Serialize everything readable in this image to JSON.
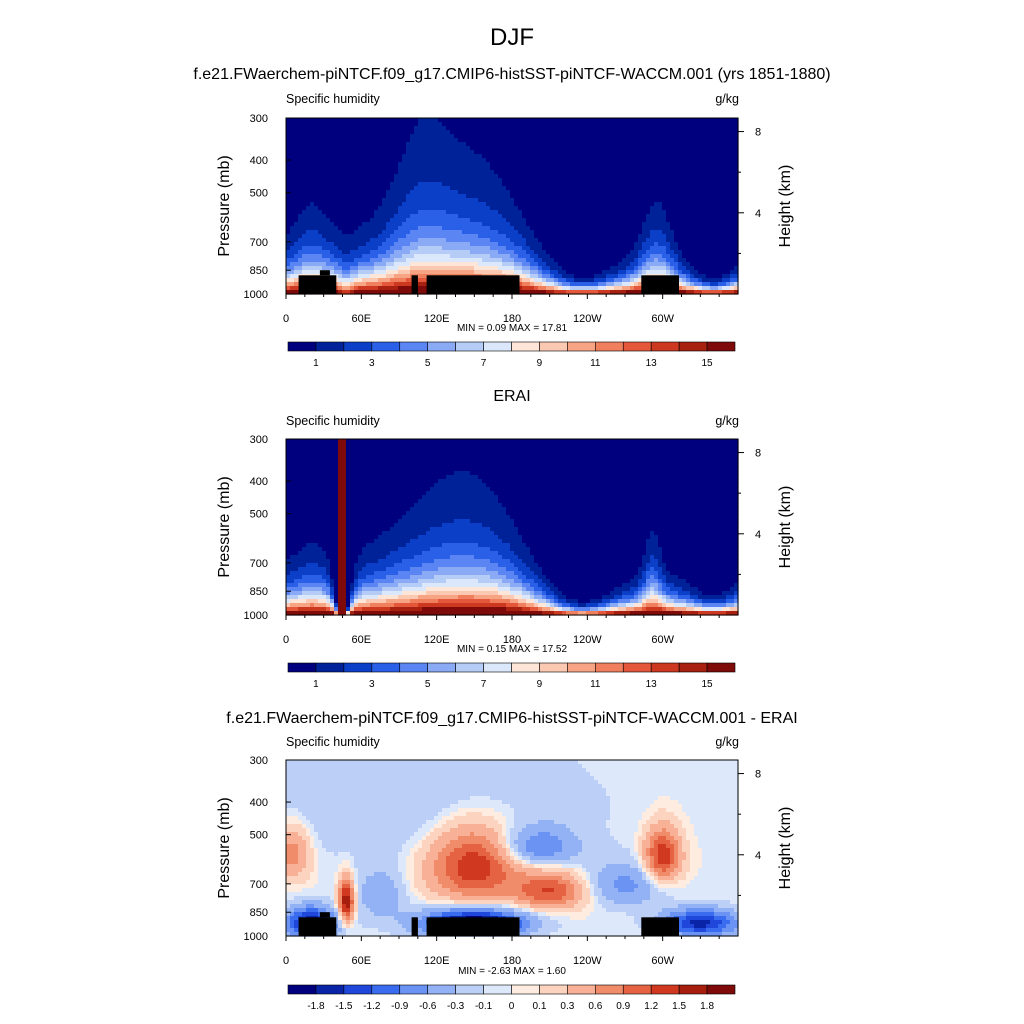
{
  "figure": {
    "season_title": "DJF"
  },
  "colors": {
    "abs_levels": [
      "#00007f",
      "#002299",
      "#0b3fc8",
      "#2a5fe8",
      "#5b85f2",
      "#8aaaf5",
      "#b5ccf7",
      "#dbe8fb",
      "#fde6d8",
      "#fbc8b2",
      "#f7a485",
      "#f07f5e",
      "#e4573a",
      "#cc3820",
      "#a8200f",
      "#7e0a0a"
    ],
    "diff_levels": [
      "#00007f",
      "#0a24a8",
      "#1f48db",
      "#3a6cf0",
      "#6a93f4",
      "#93b2f5",
      "#bcd0f7",
      "#dde9fb",
      "#fdecdf",
      "#fcd3bf",
      "#f8b196",
      "#f08c6a",
      "#e56342",
      "#d0391f",
      "#a81e0e",
      "#7e0a0a"
    ],
    "land_mask": "#000000"
  },
  "chart_data": [
    {
      "type": "heatmap",
      "title": "f.e21.FWaerchem-piNTCF.f09_g17.CMIP6-histSST-piNTCF-WACCM.001 (yrs 1851-1880)",
      "left_string": "Specific humidity",
      "right_string": "g/kg",
      "ylabel": "Pressure (mb)",
      "ylabel_right": "Height (km)",
      "x_ticks": [
        "0",
        "60E",
        "120E",
        "180",
        "120W",
        "60W"
      ],
      "x_tick_values": [
        0,
        60,
        120,
        180,
        240,
        300
      ],
      "xlim": [
        0,
        360
      ],
      "y_ticks": [
        "300",
        "400",
        "500",
        "700",
        "850",
        "1000"
      ],
      "y_tick_values": [
        300,
        400,
        500,
        700,
        850,
        1000
      ],
      "ylim": [
        1000,
        300
      ],
      "log_y": true,
      "height_ticks": [
        "8",
        "4"
      ],
      "height_tick_values": [
        8,
        4
      ],
      "stats": "MIN =   0.09  MAX =  17.81",
      "colorbar_labels": [
        "1",
        "3",
        "5",
        "7",
        "9",
        "11",
        "13",
        "15"
      ],
      "levels": [
        1,
        2,
        3,
        4,
        5,
        6,
        7,
        8,
        9,
        10,
        11,
        12,
        13,
        14,
        15
      ],
      "land": [
        [
          10,
          40,
          1000,
          880
        ],
        [
          27,
          35,
          880,
          850
        ],
        [
          100,
          105,
          1000,
          880
        ],
        [
          112,
          186,
          1000,
          880
        ],
        [
          283,
          313,
          1000,
          880
        ]
      ],
      "base_field": "model"
    },
    {
      "type": "heatmap",
      "title": "ERAI",
      "left_string": "Specific humidity",
      "right_string": "g/kg",
      "ylabel": "Pressure (mb)",
      "ylabel_right": "Height (km)",
      "x_ticks": [
        "0",
        "60E",
        "120E",
        "180",
        "120W",
        "60W"
      ],
      "x_tick_values": [
        0,
        60,
        120,
        180,
        240,
        300
      ],
      "xlim": [
        0,
        360
      ],
      "y_ticks": [
        "300",
        "400",
        "500",
        "700",
        "850",
        "1000"
      ],
      "y_tick_values": [
        300,
        400,
        500,
        700,
        850,
        1000
      ],
      "ylim": [
        1000,
        300
      ],
      "log_y": true,
      "height_ticks": [
        "8",
        "4"
      ],
      "height_tick_values": [
        8,
        4
      ],
      "stats": "MIN =   0.15  MAX =  17.52",
      "colorbar_labels": [
        "1",
        "3",
        "5",
        "7",
        "9",
        "11",
        "13",
        "15"
      ],
      "levels": [
        1,
        2,
        3,
        4,
        5,
        6,
        7,
        8,
        9,
        10,
        11,
        12,
        13,
        14,
        15
      ],
      "land": [],
      "base_field": "obs"
    },
    {
      "type": "heatmap",
      "title": "f.e21.FWaerchem-piNTCF.f09_g17.CMIP6-histSST-piNTCF-WACCM.001 - ERAI",
      "left_string": "Specific humidity",
      "right_string": "g/kg",
      "ylabel": "Pressure (mb)",
      "ylabel_right": "Height (km)",
      "x_ticks": [
        "0",
        "60E",
        "120E",
        "180",
        "120W",
        "60W"
      ],
      "x_tick_values": [
        0,
        60,
        120,
        180,
        240,
        300
      ],
      "xlim": [
        0,
        360
      ],
      "y_ticks": [
        "300",
        "400",
        "500",
        "700",
        "850",
        "1000"
      ],
      "y_tick_values": [
        300,
        400,
        500,
        700,
        850,
        1000
      ],
      "ylim": [
        1000,
        300
      ],
      "log_y": true,
      "height_ticks": [
        "8",
        "4"
      ],
      "height_tick_values": [
        8,
        4
      ],
      "stats": "MIN =  -2.63  MAX =   1.60",
      "colorbar_labels": [
        "-1.8",
        "-1.5",
        "-1.2",
        "-0.9",
        "-0.6",
        "-0.3",
        "-0.1",
        "0",
        "0.1",
        "0.3",
        "0.6",
        "0.9",
        "1.2",
        "1.5",
        "1.8"
      ],
      "levels": [
        -1.8,
        -1.5,
        -1.2,
        -0.9,
        -0.6,
        -0.3,
        -0.1,
        0,
        0.1,
        0.3,
        0.6,
        0.9,
        1.2,
        1.5,
        1.8
      ],
      "land": [
        [
          10,
          40,
          1000,
          880
        ],
        [
          27,
          35,
          880,
          850
        ],
        [
          100,
          105,
          1000,
          880
        ],
        [
          112,
          186,
          1000,
          880
        ],
        [
          283,
          313,
          1000,
          880
        ]
      ],
      "base_field": "diff"
    }
  ]
}
